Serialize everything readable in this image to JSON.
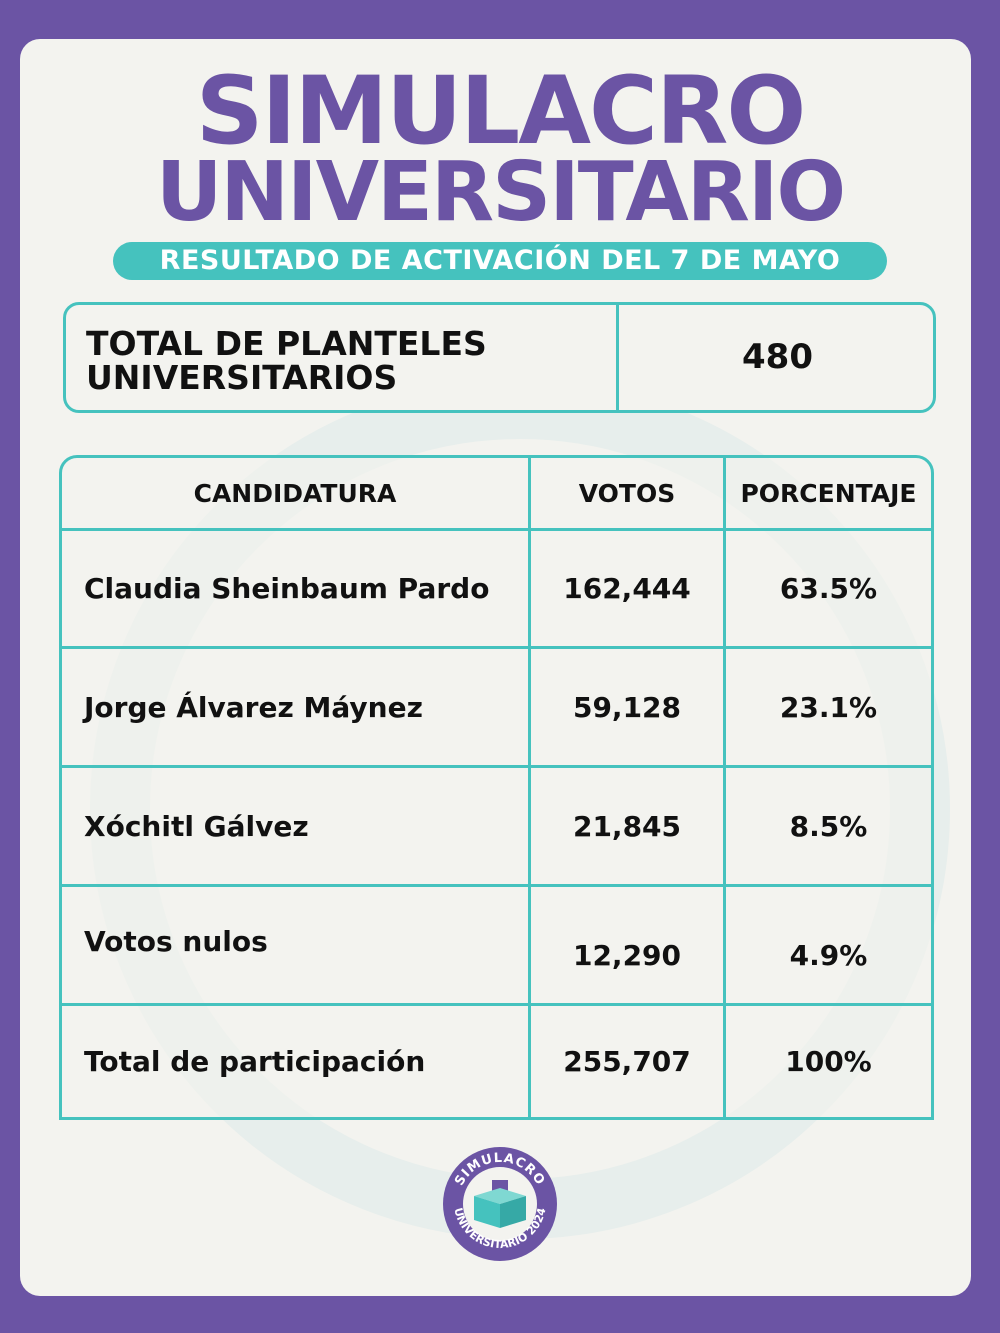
{
  "header": {
    "title_line1": "SIMULACRO",
    "title_line2": "UNIVERSITARIO",
    "subtitle": "RESULTADO DE ACTIVACIÓN DEL 7 DE MAYO"
  },
  "summary": {
    "label": "TOTAL DE PLANTELES\nUNIVERSITARIOS",
    "value": "480"
  },
  "table": {
    "columns": [
      "CANDIDATURA",
      "VOTOS",
      "PORCENTAJE"
    ],
    "rows": [
      {
        "name": "Claudia Sheinbaum Pardo",
        "votes": "162,444",
        "percent": "63.5%"
      },
      {
        "name": "Jorge Álvarez Máynez",
        "votes": "59,128",
        "percent": "23.1%"
      },
      {
        "name": "Xóchitl Gálvez",
        "votes": "21,845",
        "percent": "8.5%"
      },
      {
        "name": "Votos nulos",
        "votes": "12,290",
        "percent": "4.9%"
      },
      {
        "name": "Total de participación",
        "votes": "255,707",
        "percent": "100%"
      }
    ]
  },
  "logo": {
    "text_top": "SIMULACRO",
    "text_bottom": "UNIVERSITARIO 2024"
  },
  "colors": {
    "purple": "#6b54a4",
    "teal": "#45c2be",
    "card": "#f3f3ef"
  }
}
